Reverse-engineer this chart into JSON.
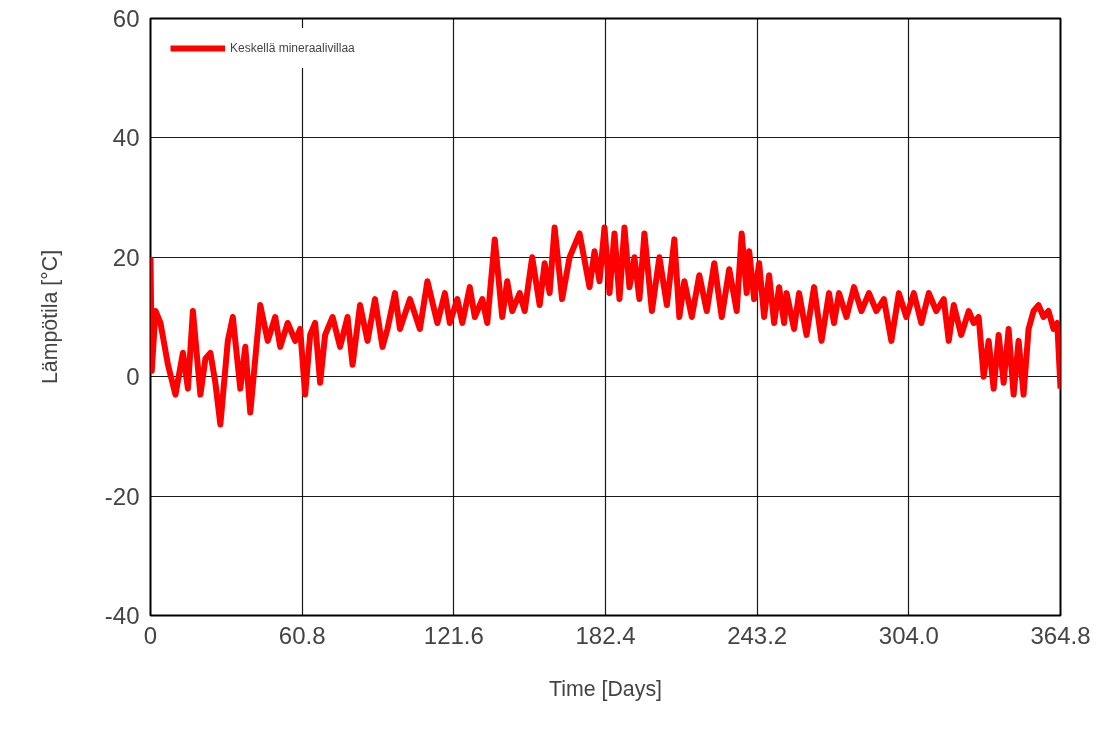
{
  "chart_data": {
    "type": "line",
    "xlabel": "Time [Days]",
    "ylabel": "Lämpötila [°C]",
    "xlim": [
      0,
      364.8
    ],
    "ylim": [
      -40,
      60
    ],
    "xticks": [
      0,
      60.8,
      121.6,
      182.4,
      {
        "value": 304.0,
        "label": "304.0"
      },
      {
        "value": 243.2,
        "label": "243.2"
      },
      364.8
    ],
    "yticks": [
      -40,
      -20,
      0,
      20,
      40,
      60
    ],
    "grid": true,
    "legend": "top left",
    "line_style": "solid",
    "series": [
      {
        "name": "Keskellä mineraalivillaa",
        "color": "#ff0000",
        "x": [
          0,
          0.5,
          2,
          4,
          7,
          10,
          13,
          15,
          17,
          20,
          22,
          24,
          26,
          28,
          31,
          33,
          36,
          38,
          40,
          42,
          44,
          47,
          50,
          52,
          55,
          58,
          60,
          62,
          64,
          66,
          68,
          70,
          73,
          76,
          79,
          81,
          84,
          87,
          90,
          93,
          95,
          98,
          100,
          104,
          108,
          111,
          115,
          118,
          120,
          123,
          125,
          128,
          130,
          133,
          135,
          138,
          141,
          143,
          145,
          148,
          150,
          153,
          156,
          158,
          160,
          162,
          165,
          168,
          172,
          176,
          178,
          180,
          182,
          184,
          186,
          188,
          190,
          192,
          194,
          196,
          198,
          201,
          204,
          207,
          210,
          212,
          214,
          217,
          220,
          223,
          226,
          229,
          232,
          235,
          237,
          239,
          240,
          242,
          244,
          246,
          248,
          250,
          252,
          254,
          255,
          258,
          260,
          263,
          266,
          269,
          272,
          274,
          276,
          279,
          282,
          285,
          288,
          291,
          294,
          297,
          300,
          303,
          306,
          309,
          312,
          315,
          318,
          320,
          322,
          325,
          328,
          330,
          332,
          334,
          336,
          338,
          340,
          342,
          344,
          346,
          348,
          350,
          352,
          354,
          356,
          358,
          360,
          362,
          363.5,
          364.8
        ],
        "values": [
          20,
          1,
          11,
          9,
          2,
          -3,
          4,
          -2,
          11,
          -3,
          3,
          4,
          -1,
          -8,
          6,
          10,
          -2,
          5,
          -6,
          3,
          12,
          6,
          10,
          5,
          9,
          6,
          8,
          -3,
          7,
          9,
          -1,
          7,
          10,
          5,
          10,
          2,
          12,
          6,
          13,
          5,
          8,
          14,
          8,
          13,
          8,
          16,
          9,
          14,
          9,
          13,
          9,
          15,
          10,
          13,
          9,
          23,
          10,
          16,
          11,
          14,
          11,
          20,
          12,
          19,
          14,
          25,
          13,
          20,
          24,
          15,
          21,
          16,
          25,
          14,
          24,
          13,
          25,
          15,
          20,
          13,
          24,
          11,
          20,
          12,
          23,
          10,
          16,
          10,
          17,
          11,
          19,
          10,
          18,
          11,
          24,
          14,
          21,
          13,
          19,
          10,
          17,
          9,
          15,
          9,
          14,
          8,
          14,
          7,
          15,
          6,
          14,
          9,
          14,
          10,
          15,
          11,
          14,
          11,
          13,
          6,
          14,
          10,
          14,
          9,
          14,
          11,
          13,
          6,
          12,
          7,
          11,
          9,
          10,
          0,
          6,
          -2,
          7,
          -1,
          8,
          -3,
          6,
          -3,
          8,
          11,
          12,
          10,
          11,
          8,
          9,
          -2
        ]
      }
    ]
  }
}
